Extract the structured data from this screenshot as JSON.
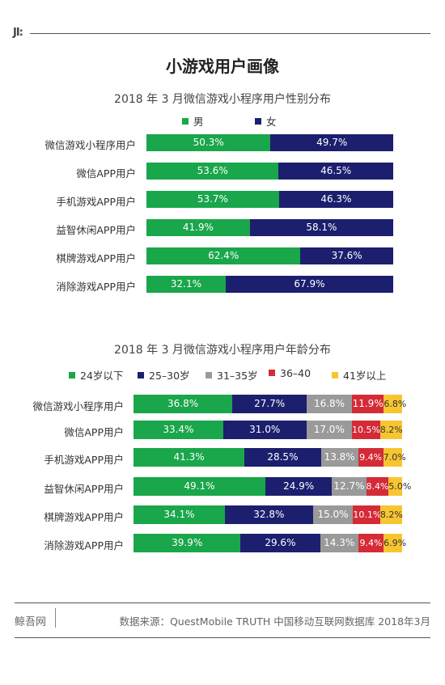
{
  "header": {
    "logo": "JI:"
  },
  "main_title": "小游戏用户画像",
  "chart_data": [
    {
      "type": "bar",
      "stacked": "horizontal-percent",
      "title": "2018 年 3 月微信游戏小程序用户性别分布",
      "categories": [
        "微信游戏小程序用户",
        "微信APP用户",
        "手机游戏APP用户",
        "益智休闲APP用户",
        "棋牌游戏APP用户",
        "消除游戏APP用户"
      ],
      "series": [
        {
          "name": "男",
          "color": "#1aa64b",
          "values": [
            50.3,
            53.6,
            53.7,
            41.9,
            62.4,
            32.1
          ],
          "labels": [
            "50.3%",
            "53.6%",
            "53.7%",
            "41.9%",
            "62.4%",
            "32.1%"
          ]
        },
        {
          "name": "女",
          "color": "#1c1f6e",
          "values": [
            49.7,
            46.5,
            46.3,
            58.1,
            37.6,
            67.9
          ],
          "labels": [
            "49.7%",
            "46.5%",
            "46.3%",
            "58.1%",
            "37.6%",
            "67.9%"
          ]
        }
      ],
      "legend_position": "top"
    },
    {
      "type": "bar",
      "stacked": "horizontal-percent",
      "title": "2018 年 3 月微信游戏小程序用户年龄分布",
      "categories": [
        "微信游戏小程序用户",
        "微信APP用户",
        "手机游戏APP用户",
        "益智休闲APP用户",
        "棋牌游戏APP用户",
        "消除游戏APP用户"
      ],
      "series": [
        {
          "name": "24岁以下",
          "color": "#1aa64b",
          "values": [
            36.8,
            33.4,
            41.3,
            49.1,
            34.1,
            39.9
          ],
          "labels": [
            "36.8%",
            "33.4%",
            "41.3%",
            "49.1%",
            "34.1%",
            "39.9%"
          ]
        },
        {
          "name": "25–30岁",
          "color": "#1c1f6e",
          "values": [
            27.7,
            31.0,
            28.5,
            24.9,
            32.8,
            29.6
          ],
          "labels": [
            "27.7%",
            "31.0%",
            "28.5%",
            "24.9%",
            "32.8%",
            "29.6%"
          ]
        },
        {
          "name": "31–35岁",
          "color": "#9a9a9a",
          "values": [
            16.8,
            17.0,
            13.8,
            12.7,
            15.0,
            14.3
          ],
          "labels": [
            "16.8%",
            "17.0%",
            "13.8%",
            "12.7%",
            "15.0%",
            "14.3%"
          ]
        },
        {
          "name": "36–40",
          "color": "#d42b37",
          "values": [
            11.9,
            10.5,
            9.4,
            8.4,
            10.1,
            9.4
          ],
          "labels": [
            "11.9%",
            "10.5%",
            "9.4%",
            "8.4%",
            "10.1%",
            "9.4%"
          ]
        },
        {
          "name": "41岁以上",
          "color": "#f7c530",
          "values": [
            6.8,
            8.2,
            7.0,
            5.0,
            8.2,
            6.9
          ],
          "labels": [
            "6.8%",
            "8.2%",
            "7.0%",
            "5.0%",
            "8.2%",
            "6.9%"
          ]
        }
      ],
      "legend_position": "top"
    }
  ],
  "footer": {
    "brand": "鲸吾网",
    "source": "数据来源：QuestMobile TRUTH 中国移动互联网数据库 2018年3月"
  }
}
